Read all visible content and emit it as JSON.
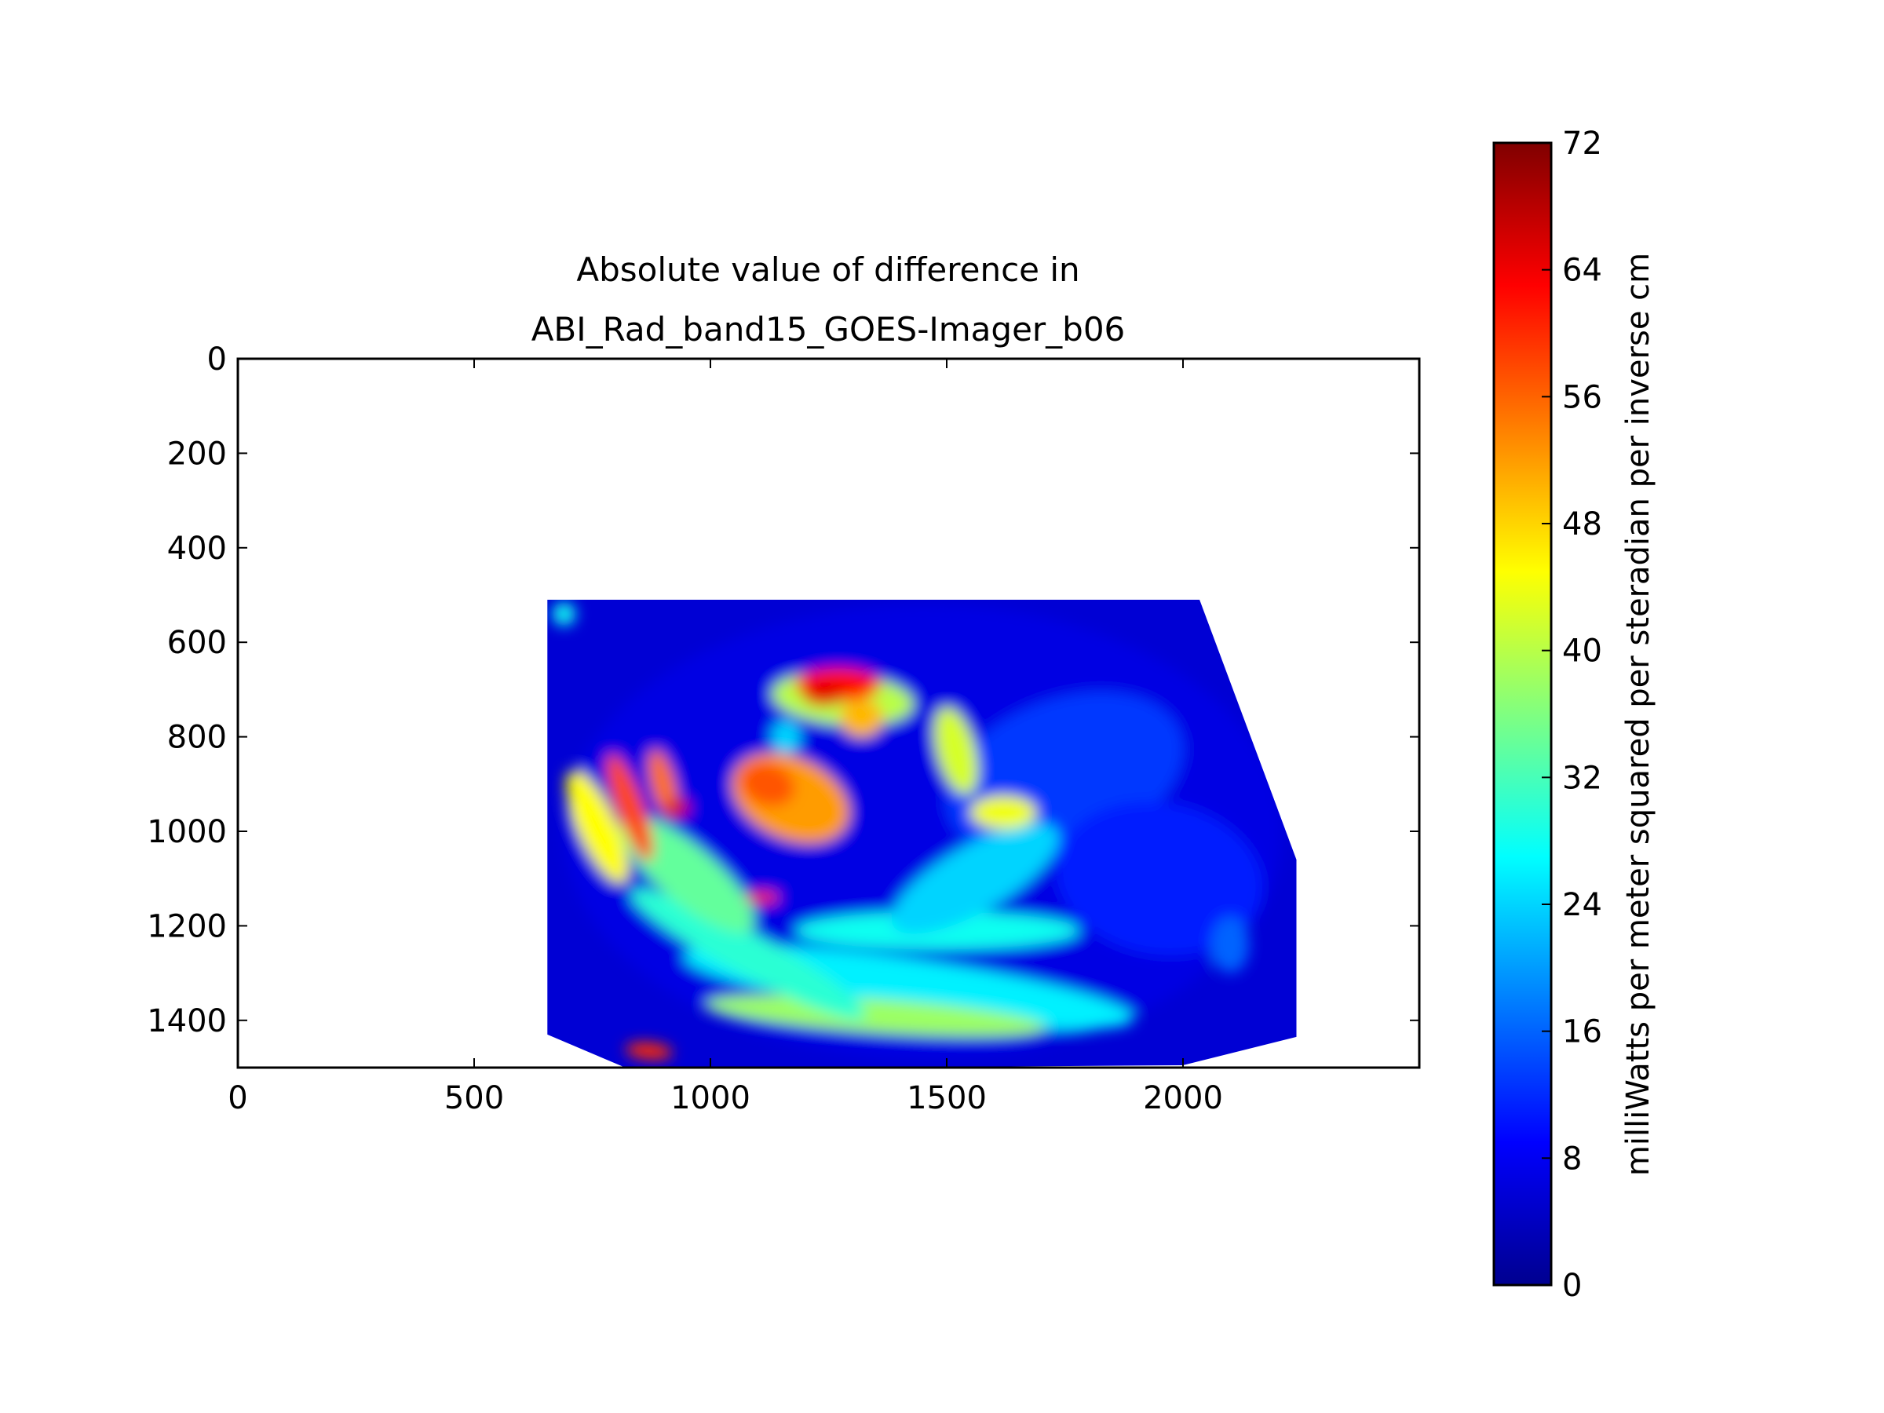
{
  "chart_data": {
    "type": "heatmap",
    "title_line1": "Absolute value of difference in",
    "title_line2": "ABI_Rad_band15_GOES-Imager_b06",
    "xlabel": "",
    "ylabel": "",
    "xlim": [
      0,
      2500
    ],
    "ylim": [
      1500,
      0
    ],
    "x_ticks": [
      0,
      500,
      1000,
      1500,
      2000
    ],
    "y_ticks": [
      0,
      200,
      400,
      600,
      800,
      1000,
      1200,
      1400
    ],
    "x_tick_labels": [
      "0",
      "500",
      "1000",
      "1500",
      "2000"
    ],
    "y_tick_labels": [
      "0",
      "200",
      "400",
      "600",
      "800",
      "1000",
      "1200",
      "1400"
    ],
    "colormap": "jet",
    "colorbar": {
      "range": [
        0,
        72
      ],
      "ticks": [
        0,
        8,
        16,
        24,
        32,
        40,
        48,
        56,
        64,
        72
      ],
      "tick_labels": [
        "0",
        "8",
        "16",
        "24",
        "32",
        "40",
        "48",
        "56",
        "64",
        "72"
      ],
      "label": "milliWatts per meter squared per steradian per inverse cm"
    },
    "data_footprint": [
      [
        655,
        510
      ],
      [
        2035,
        510
      ],
      [
        2240,
        1060
      ],
      [
        2240,
        1435
      ],
      [
        2000,
        1495
      ],
      [
        1300,
        1500
      ],
      [
        820,
        1500
      ],
      [
        655,
        1430
      ]
    ],
    "regions": [
      {
        "cx": 1450,
        "cy": 1000,
        "rx": 760,
        "ry": 480,
        "rot": 0,
        "value": 7
      },
      {
        "cx": 1750,
        "cy": 880,
        "rx": 260,
        "ry": 160,
        "rot": -20,
        "value": 13
      },
      {
        "cx": 1950,
        "cy": 1100,
        "rx": 220,
        "ry": 160,
        "rot": 10,
        "value": 11
      },
      {
        "cx": 1420,
        "cy": 1330,
        "rx": 480,
        "ry": 60,
        "rot": 8,
        "value": 26
      },
      {
        "cx": 1350,
        "cy": 1390,
        "rx": 360,
        "ry": 35,
        "rot": 4,
        "value": 38
      },
      {
        "cx": 1080,
        "cy": 1260,
        "rx": 280,
        "ry": 45,
        "rot": 28,
        "value": 30
      },
      {
        "cx": 1480,
        "cy": 1210,
        "rx": 300,
        "ry": 40,
        "rot": 0,
        "value": 28
      },
      {
        "cx": 1560,
        "cy": 1100,
        "rx": 200,
        "ry": 70,
        "rot": -30,
        "value": 24
      },
      {
        "cx": 950,
        "cy": 1090,
        "rx": 180,
        "ry": 60,
        "rot": 40,
        "value": 34
      },
      {
        "cx": 1280,
        "cy": 720,
        "rx": 150,
        "ry": 55,
        "rot": 5,
        "value": 40
      },
      {
        "cx": 1520,
        "cy": 830,
        "rx": 40,
        "ry": 95,
        "rot": -15,
        "value": 42
      },
      {
        "cx": 1620,
        "cy": 960,
        "rx": 70,
        "ry": 35,
        "rot": 0,
        "value": 44
      },
      {
        "cx": 1170,
        "cy": 930,
        "rx": 130,
        "ry": 85,
        "rot": 25,
        "value": 52
      },
      {
        "cx": 1120,
        "cy": 900,
        "rx": 60,
        "ry": 45,
        "rot": 20,
        "value": 57
      },
      {
        "cx": 1270,
        "cy": 690,
        "rx": 90,
        "ry": 35,
        "rot": 0,
        "value": 62
      },
      {
        "cx": 1240,
        "cy": 710,
        "rx": 45,
        "ry": 25,
        "rot": 0,
        "value": 65
      },
      {
        "cx": 1320,
        "cy": 760,
        "rx": 45,
        "ry": 40,
        "rot": 0,
        "value": 50
      },
      {
        "cx": 760,
        "cy": 990,
        "rx": 40,
        "ry": 130,
        "rot": -25,
        "value": 45
      },
      {
        "cx": 830,
        "cy": 950,
        "rx": 28,
        "ry": 120,
        "rot": -20,
        "value": 58
      },
      {
        "cx": 900,
        "cy": 900,
        "rx": 25,
        "ry": 75,
        "rot": -15,
        "value": 55
      },
      {
        "cx": 930,
        "cy": 950,
        "rx": 25,
        "ry": 18,
        "rot": 0,
        "value": 66
      },
      {
        "cx": 1110,
        "cy": 1140,
        "rx": 35,
        "ry": 12,
        "rot": 0,
        "value": 60
      },
      {
        "cx": 870,
        "cy": 1465,
        "rx": 50,
        "ry": 18,
        "rot": 5,
        "value": 60
      },
      {
        "cx": 690,
        "cy": 540,
        "rx": 25,
        "ry": 25,
        "rot": 0,
        "value": 28
      },
      {
        "cx": 1160,
        "cy": 800,
        "rx": 30,
        "ry": 35,
        "rot": 0,
        "value": 24
      },
      {
        "cx": 2100,
        "cy": 1240,
        "rx": 40,
        "ry": 60,
        "rot": 0,
        "value": 16
      }
    ]
  }
}
